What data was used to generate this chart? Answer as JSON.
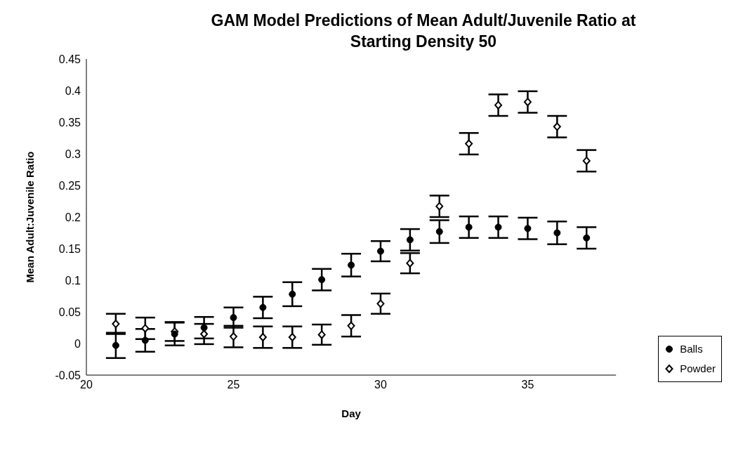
{
  "chart_data": {
    "type": "scatter",
    "title": "GAM Model Predictions of Mean Adult/Juvenile Ratio at Starting Density 50",
    "xlabel": "Day",
    "ylabel": "Mean Adult:Juvenile Ratio",
    "xlim": [
      20,
      38
    ],
    "xticks": [
      20,
      25,
      30,
      35
    ],
    "ylim": [
      -0.05,
      0.45
    ],
    "yticks": [
      -0.05,
      0,
      0.05,
      0.1,
      0.15,
      0.2,
      0.25,
      0.3,
      0.35,
      0.4,
      0.45
    ],
    "grid": false,
    "legend": "bottom right",
    "series": [
      {
        "name": "Balls",
        "color": "#000000",
        "marker": "circle",
        "x": [
          21,
          22,
          23,
          24,
          25,
          26,
          27,
          28,
          29,
          30,
          31,
          32,
          33,
          34,
          35,
          36,
          37
        ],
        "values": [
          -0.003,
          0.005,
          0.015,
          0.025,
          0.041,
          0.057,
          0.078,
          0.101,
          0.124,
          0.146,
          0.164,
          0.177,
          0.184,
          0.184,
          0.182,
          0.175,
          0.167
        ],
        "errors": [
          0.02,
          0.018,
          0.018,
          0.017,
          0.016,
          0.017,
          0.019,
          0.017,
          0.018,
          0.016,
          0.017,
          0.018,
          0.017,
          0.017,
          0.017,
          0.018,
          0.017
        ]
      },
      {
        "name": "Powder",
        "color": "#000000",
        "marker": "diamond",
        "x": [
          21,
          22,
          23,
          24,
          25,
          26,
          27,
          28,
          29,
          30,
          31,
          32,
          33,
          34,
          35,
          36,
          37
        ],
        "values": [
          0.031,
          0.024,
          0.019,
          0.015,
          0.011,
          0.01,
          0.01,
          0.014,
          0.028,
          0.063,
          0.127,
          0.217,
          0.316,
          0.377,
          0.382,
          0.343,
          0.289
        ],
        "errors": [
          0.016,
          0.017,
          0.015,
          0.016,
          0.017,
          0.017,
          0.017,
          0.016,
          0.017,
          0.016,
          0.016,
          0.017,
          0.017,
          0.017,
          0.017,
          0.017,
          0.017
        ]
      }
    ]
  }
}
